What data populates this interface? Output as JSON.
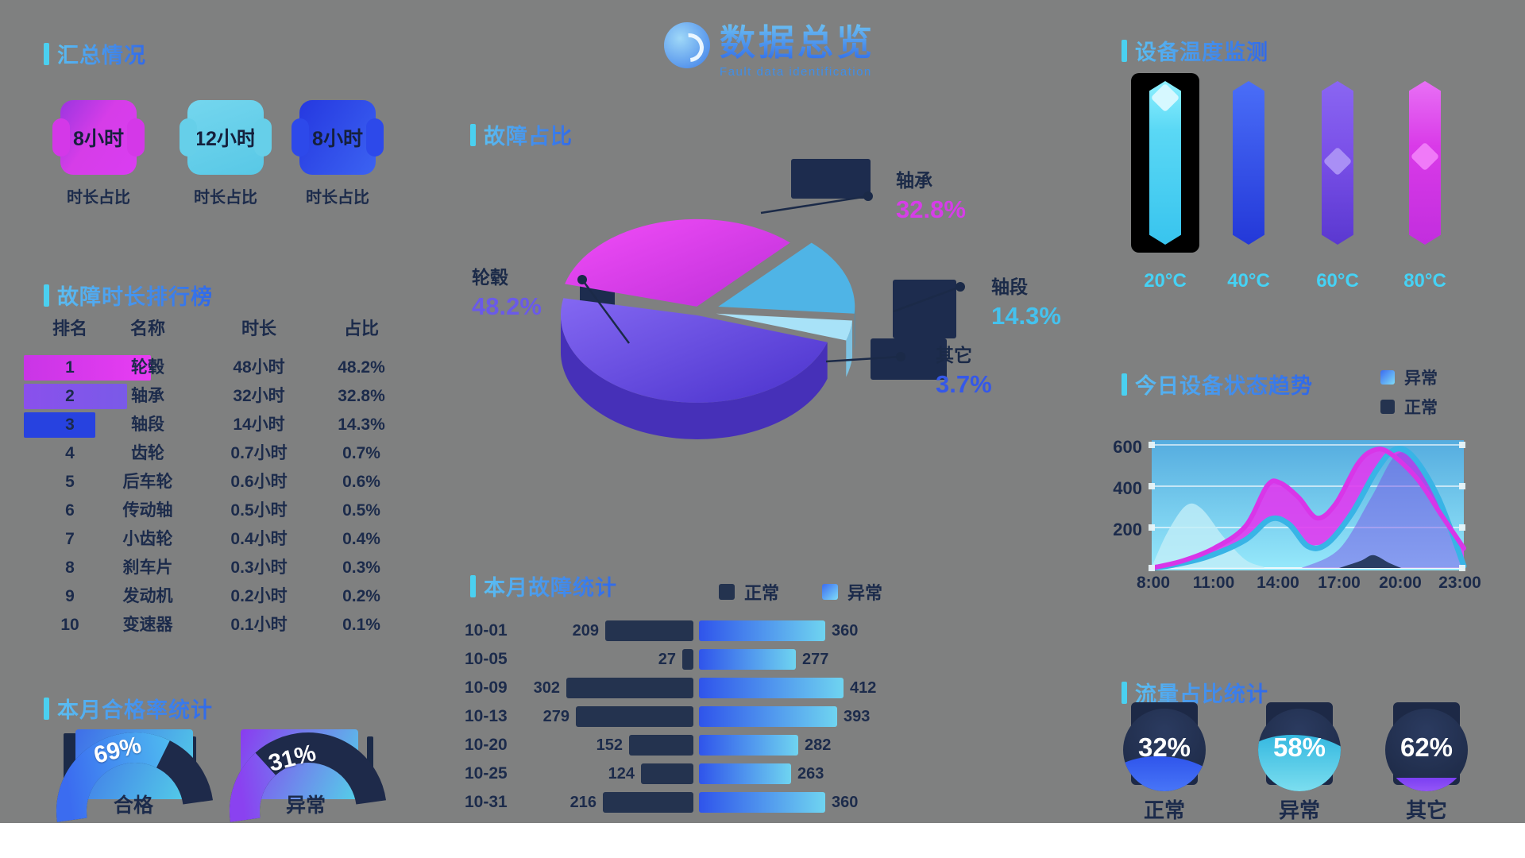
{
  "header": {
    "title": "数据总览",
    "subtitle": "Fault data identification"
  },
  "sections": {
    "overview": {
      "title": "汇总情况",
      "badges": [
        {
          "value": "8小时",
          "label": "时长占比",
          "theme": "magenta"
        },
        {
          "value": "12小时",
          "label": "时长占比",
          "theme": "cyan"
        },
        {
          "value": "8小时",
          "label": "时长占比",
          "theme": "blue"
        }
      ]
    },
    "ranking": {
      "title": "故障时长排行榜",
      "columns": [
        "排名",
        "名称",
        "时长",
        "占比"
      ],
      "rows": [
        {
          "rank": "1",
          "name": "轮毂",
          "duration": "48小时",
          "pct": "48.2%",
          "highlight": "magenta",
          "hl_w": 160
        },
        {
          "rank": "2",
          "name": "轴承",
          "duration": "32小时",
          "pct": "32.8%",
          "highlight": "purple",
          "hl_w": 130
        },
        {
          "rank": "3",
          "name": "轴段",
          "duration": "14小时",
          "pct": "14.3%",
          "highlight": "blue",
          "hl_w": 90
        },
        {
          "rank": "4",
          "name": "齿轮",
          "duration": "0.7小时",
          "pct": "0.7%"
        },
        {
          "rank": "5",
          "name": "后车轮",
          "duration": "0.6小时",
          "pct": "0.6%"
        },
        {
          "rank": "6",
          "name": "传动轴",
          "duration": "0.5小时",
          "pct": "0.5%"
        },
        {
          "rank": "7",
          "name": "小齿轮",
          "duration": "0.4小时",
          "pct": "0.4%"
        },
        {
          "rank": "8",
          "name": "刹车片",
          "duration": "0.3小时",
          "pct": "0.3%"
        },
        {
          "rank": "9",
          "name": "发动机",
          "duration": "0.2小时",
          "pct": "0.2%"
        },
        {
          "rank": "10",
          "name": "变速器",
          "duration": "0.1小时",
          "pct": "0.1%"
        }
      ]
    },
    "gauges": {
      "title": "本月合格率统计",
      "items": [
        {
          "display": "69%",
          "label": "合格",
          "theme": "blue"
        },
        {
          "display": "31%",
          "label": "异常",
          "theme": "purple"
        }
      ]
    },
    "pie": {
      "title": "故障占比"
    },
    "tornado": {
      "title": "本月故障统计",
      "legend": [
        {
          "label": "正常",
          "theme": "dark"
        },
        {
          "label": "异常",
          "theme": "cyan"
        }
      ]
    },
    "temperature": {
      "title": "设备温度监测",
      "bars": [
        {
          "label": "20°C",
          "theme": "cyan",
          "boxed": true
        },
        {
          "label": "40°C",
          "theme": "blue"
        },
        {
          "label": "60°C",
          "theme": "violet"
        },
        {
          "label": "80°C",
          "theme": "magenta"
        }
      ]
    },
    "trend": {
      "title": "今日设备状态趋势",
      "legend": [
        {
          "label": "异常",
          "theme": "cyan"
        },
        {
          "label": "正常",
          "theme": "dark"
        }
      ]
    },
    "liquid": {
      "title": "流量占比统计",
      "items": [
        {
          "display": "32%",
          "label": "正常",
          "fill": 46,
          "color_top": "#2f55ec",
          "color_bottom": "#4a78f8"
        },
        {
          "display": "58%",
          "label": "异常",
          "fill": 72,
          "color_top": "#35b8e0",
          "color_bottom": "#7fe0f0"
        },
        {
          "display": "62%",
          "label": "其它",
          "fill": 20,
          "color_top": "#7b3ff2",
          "color_bottom": "#9a5cf8"
        }
      ]
    }
  },
  "chart_data": {
    "pie": {
      "type": "pie",
      "title": "故障占比",
      "unit": "%",
      "slices": [
        {
          "name": "轴承",
          "value": 32.8,
          "display": "32.8%",
          "color": "#d93ae8"
        },
        {
          "name": "轴段",
          "value": 14.3,
          "display": "14.3%",
          "color": "#4fb4e6"
        },
        {
          "name": "其它",
          "value": 3.7,
          "display": "3.7%",
          "color": "#a8e2f8"
        },
        {
          "name": "轮毂",
          "value": 48.2,
          "display": "48.2%",
          "color": "#6a50e0"
        }
      ]
    },
    "tornado": {
      "type": "bar",
      "orientation": "tornado",
      "title": "本月故障统计",
      "categories": [
        "10-01",
        "10-05",
        "10-09",
        "10-13",
        "10-20",
        "10-25",
        "10-31"
      ],
      "series": [
        {
          "name": "正常",
          "values": [
            209,
            27,
            302,
            279,
            152,
            124,
            216
          ]
        },
        {
          "name": "异常",
          "values": [
            360,
            277,
            412,
            393,
            282,
            263,
            360
          ]
        }
      ]
    },
    "trend": {
      "type": "area",
      "title": "今日设备状态趋势",
      "y_ticks": [
        "600",
        "400",
        "200"
      ],
      "x_ticks": [
        "8:00",
        "11:00",
        "14:00",
        "17:00",
        "20:00",
        "23:00"
      ],
      "ylim": [
        0,
        620
      ],
      "series": [
        {
          "name": "异常",
          "color": "#38b4e6",
          "points": [
            [
              0,
              0
            ],
            [
              0.07,
              15
            ],
            [
              0.18,
              55
            ],
            [
              0.3,
              135
            ],
            [
              0.38,
              235
            ],
            [
              0.44,
              210
            ],
            [
              0.5,
              105
            ],
            [
              0.56,
              115
            ],
            [
              0.64,
              260
            ],
            [
              0.72,
              470
            ],
            [
              0.78,
              570
            ],
            [
              0.84,
              530
            ],
            [
              0.92,
              330
            ],
            [
              1,
              10
            ]
          ]
        },
        {
          "name": "正常",
          "color": "#d836e8",
          "points": [
            [
              0,
              0
            ],
            [
              0.1,
              35
            ],
            [
              0.2,
              95
            ],
            [
              0.3,
              200
            ],
            [
              0.37,
              395
            ],
            [
              0.41,
              410
            ],
            [
              0.47,
              340
            ],
            [
              0.53,
              240
            ],
            [
              0.59,
              310
            ],
            [
              0.66,
              500
            ],
            [
              0.71,
              565
            ],
            [
              0.76,
              555
            ],
            [
              0.85,
              430
            ],
            [
              0.93,
              250
            ],
            [
              1,
              95
            ]
          ]
        }
      ],
      "auxiliary": {
        "left_hump": [
          [
            0,
            5
          ],
          [
            0.05,
            170
          ],
          [
            0.11,
            300
          ],
          [
            0.16,
            285
          ],
          [
            0.23,
            150
          ],
          [
            0.3,
            40
          ],
          [
            0.36,
            5
          ]
        ],
        "purple_area": [
          [
            0.48,
            0
          ],
          [
            0.6,
            90
          ],
          [
            0.7,
            330
          ],
          [
            0.78,
            540
          ],
          [
            0.84,
            520
          ],
          [
            0.92,
            320
          ],
          [
            1,
            10
          ]
        ],
        "dark_hump": [
          [
            0.6,
            0
          ],
          [
            0.67,
            35
          ],
          [
            0.71,
            62
          ],
          [
            0.76,
            25
          ],
          [
            0.8,
            0
          ]
        ]
      }
    },
    "gauges": {
      "type": "gauge",
      "values": [
        69,
        31
      ],
      "labels": [
        "合格",
        "异常"
      ]
    },
    "temperature": {
      "type": "bar",
      "categories": [
        "20°C",
        "40°C",
        "60°C",
        "80°C"
      ]
    },
    "liquid": {
      "type": "gauge",
      "values": [
        32,
        58,
        62
      ],
      "labels": [
        "正常",
        "异常",
        "其它"
      ]
    }
  }
}
